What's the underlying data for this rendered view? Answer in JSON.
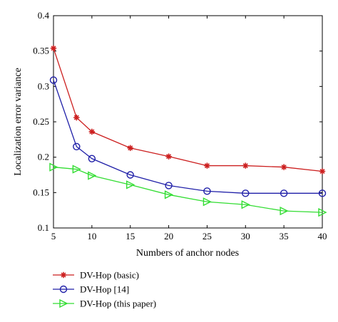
{
  "chart_data": {
    "type": "line",
    "xlabel": "Numbers of anchor nodes",
    "ylabel": "Localization error variance",
    "xlim": [
      5,
      40
    ],
    "ylim": [
      0.1,
      0.4
    ],
    "x_ticks": [
      5,
      10,
      15,
      20,
      25,
      30,
      35,
      40
    ],
    "y_ticks": [
      0.1,
      0.15,
      0.2,
      0.25,
      0.3,
      0.35,
      0.4
    ],
    "grid": false,
    "legend_position": "below",
    "x": [
      5,
      8,
      10,
      15,
      20,
      25,
      30,
      35,
      40
    ],
    "series": [
      {
        "name": "DV-Hop (basic)",
        "marker": "star",
        "color": "#cc1f1f",
        "values": [
          0.354,
          0.256,
          0.236,
          0.213,
          0.201,
          0.188,
          0.188,
          0.186,
          0.18
        ]
      },
      {
        "name": "DV-Hop [14]",
        "marker": "circle",
        "color": "#1f1fa8",
        "values": [
          0.309,
          0.215,
          0.198,
          0.175,
          0.16,
          0.152,
          0.149,
          0.149,
          0.149
        ]
      },
      {
        "name": "DV-Hop (this paper)",
        "marker": "triangle-right",
        "color": "#33dd33",
        "values": [
          0.186,
          0.183,
          0.174,
          0.161,
          0.147,
          0.137,
          0.133,
          0.124,
          0.122
        ]
      }
    ]
  }
}
